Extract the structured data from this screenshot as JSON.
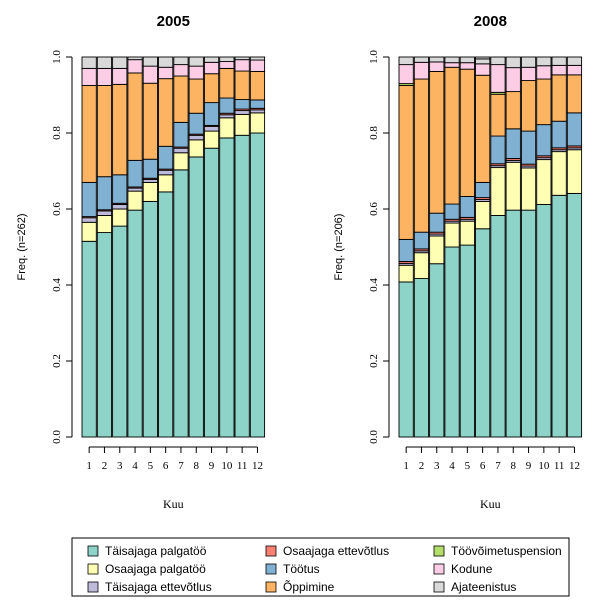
{
  "chart_data": [
    {
      "type": "bar",
      "stacked": true,
      "title": "2005",
      "xlabel": "Kuu",
      "ylabel": "Freq. (n=262)",
      "ylim": [
        0,
        1
      ],
      "y_ticks": [
        "0.0",
        "0.2",
        "0.4",
        "0.6",
        "0.8",
        "1.0"
      ],
      "categories": [
        "1",
        "2",
        "3",
        "4",
        "5",
        "6",
        "7",
        "8",
        "9",
        "10",
        "11",
        "12"
      ],
      "series": [
        {
          "name": "Täisajaga palgatöö",
          "color": "#8dd3c7",
          "values": [
            0.515,
            0.538,
            0.555,
            0.597,
            0.62,
            0.645,
            0.703,
            0.737,
            0.76,
            0.787,
            0.794,
            0.8
          ]
        },
        {
          "name": "Osaajaga palgatöö",
          "color": "#ffffb3",
          "values": [
            0.05,
            0.045,
            0.045,
            0.05,
            0.05,
            0.045,
            0.045,
            0.045,
            0.045,
            0.053,
            0.055,
            0.053
          ]
        },
        {
          "name": "Täisajaga ettevõtlus",
          "color": "#bebada",
          "values": [
            0.012,
            0.012,
            0.012,
            0.008,
            0.008,
            0.012,
            0.012,
            0.012,
            0.012,
            0.008,
            0.01,
            0.008
          ]
        },
        {
          "name": "Osaajaga ettevõtlus",
          "color": "#fb8072",
          "values": [
            0.003,
            0.003,
            0.003,
            0.003,
            0.003,
            0.003,
            0.003,
            0.003,
            0.003,
            0.004,
            0.004,
            0.004
          ]
        },
        {
          "name": "Töötus",
          "color": "#80b1d3",
          "values": [
            0.09,
            0.087,
            0.075,
            0.07,
            0.05,
            0.06,
            0.065,
            0.055,
            0.06,
            0.04,
            0.025,
            0.022
          ]
        },
        {
          "name": "Õppimine",
          "color": "#fdb462",
          "values": [
            0.255,
            0.24,
            0.238,
            0.23,
            0.2,
            0.178,
            0.122,
            0.09,
            0.076,
            0.078,
            0.075,
            0.075
          ]
        },
        {
          "name": "Töövõimetuspension",
          "color": "#b3de69",
          "values": [
            0,
            0,
            0,
            0,
            0,
            0,
            0,
            0,
            0,
            0,
            0,
            0
          ]
        },
        {
          "name": "Kodune",
          "color": "#fccde5",
          "values": [
            0.045,
            0.045,
            0.042,
            0.035,
            0.045,
            0.03,
            0.03,
            0.034,
            0.03,
            0.018,
            0.03,
            0.03
          ]
        },
        {
          "name": "Ajateenistus",
          "color": "#d9d9d9",
          "values": [
            0.03,
            0.03,
            0.03,
            0.007,
            0.024,
            0.027,
            0.02,
            0.024,
            0.014,
            0.012,
            0.007,
            0.008
          ]
        }
      ]
    },
    {
      "type": "bar",
      "stacked": true,
      "title": "2008",
      "xlabel": "Kuu",
      "ylabel": "Freq. (n=206)",
      "ylim": [
        0,
        1
      ],
      "y_ticks": [
        "0.0",
        "0.2",
        "0.4",
        "0.6",
        "0.8",
        "1.0"
      ],
      "categories": [
        "1",
        "2",
        "3",
        "4",
        "5",
        "6",
        "7",
        "8",
        "9",
        "10",
        "11",
        "12"
      ],
      "series": [
        {
          "name": "Täisajaga palgatöö",
          "color": "#8dd3c7",
          "values": [
            0.408,
            0.417,
            0.456,
            0.5,
            0.505,
            0.548,
            0.583,
            0.597,
            0.597,
            0.612,
            0.636,
            0.641
          ]
        },
        {
          "name": "Osaajaga palgatöö",
          "color": "#ffffb3",
          "values": [
            0.044,
            0.068,
            0.073,
            0.063,
            0.063,
            0.072,
            0.126,
            0.126,
            0.111,
            0.118,
            0.115,
            0.115
          ]
        },
        {
          "name": "Täisajaga ettevõtlus",
          "color": "#bebada",
          "values": [
            0.005,
            0.005,
            0.005,
            0.005,
            0.005,
            0.005,
            0.005,
            0.005,
            0.005,
            0.005,
            0.005,
            0.005
          ]
        },
        {
          "name": "Osaajaga ettevõtlus",
          "color": "#fb8072",
          "values": [
            0.005,
            0.005,
            0.005,
            0.005,
            0.005,
            0.005,
            0.005,
            0.005,
            0.005,
            0.005,
            0.005,
            0.005
          ]
        },
        {
          "name": "Töötus",
          "color": "#80b1d3",
          "values": [
            0.058,
            0.044,
            0.05,
            0.04,
            0.055,
            0.04,
            0.073,
            0.078,
            0.087,
            0.082,
            0.07,
            0.087
          ]
        },
        {
          "name": "Õppimine",
          "color": "#fdb462",
          "values": [
            0.405,
            0.403,
            0.373,
            0.36,
            0.335,
            0.282,
            0.11,
            0.098,
            0.133,
            0.12,
            0.122,
            0.1
          ]
        },
        {
          "name": "Töövõimetuspension",
          "color": "#b3de69",
          "values": [
            0.005,
            0,
            0,
            0,
            0,
            0,
            0.005,
            0,
            0,
            0,
            0,
            0
          ]
        },
        {
          "name": "Kodune",
          "color": "#fccde5",
          "values": [
            0.05,
            0.044,
            0.025,
            0.012,
            0.017,
            0.03,
            0.073,
            0.063,
            0.035,
            0.035,
            0.025,
            0.025
          ]
        },
        {
          "name": "Ajateenistus",
          "color": "#d9d9d9",
          "values": [
            0.02,
            0.014,
            0.013,
            0.015,
            0.015,
            0.013,
            0.02,
            0.028,
            0.027,
            0.023,
            0.022,
            0.022
          ]
        }
      ]
    }
  ],
  "legend": {
    "placement": "bottom",
    "columns": [
      [
        "Täisajaga palgatöö",
        "Osaajaga palgatöö",
        "Täisajaga ettevõtlus"
      ],
      [
        "Osaajaga ettevõtlus",
        "Töötus",
        "Õppimine"
      ],
      [
        "Töövõimetuspension",
        "Kodune",
        "Ajateenistus"
      ]
    ]
  }
}
